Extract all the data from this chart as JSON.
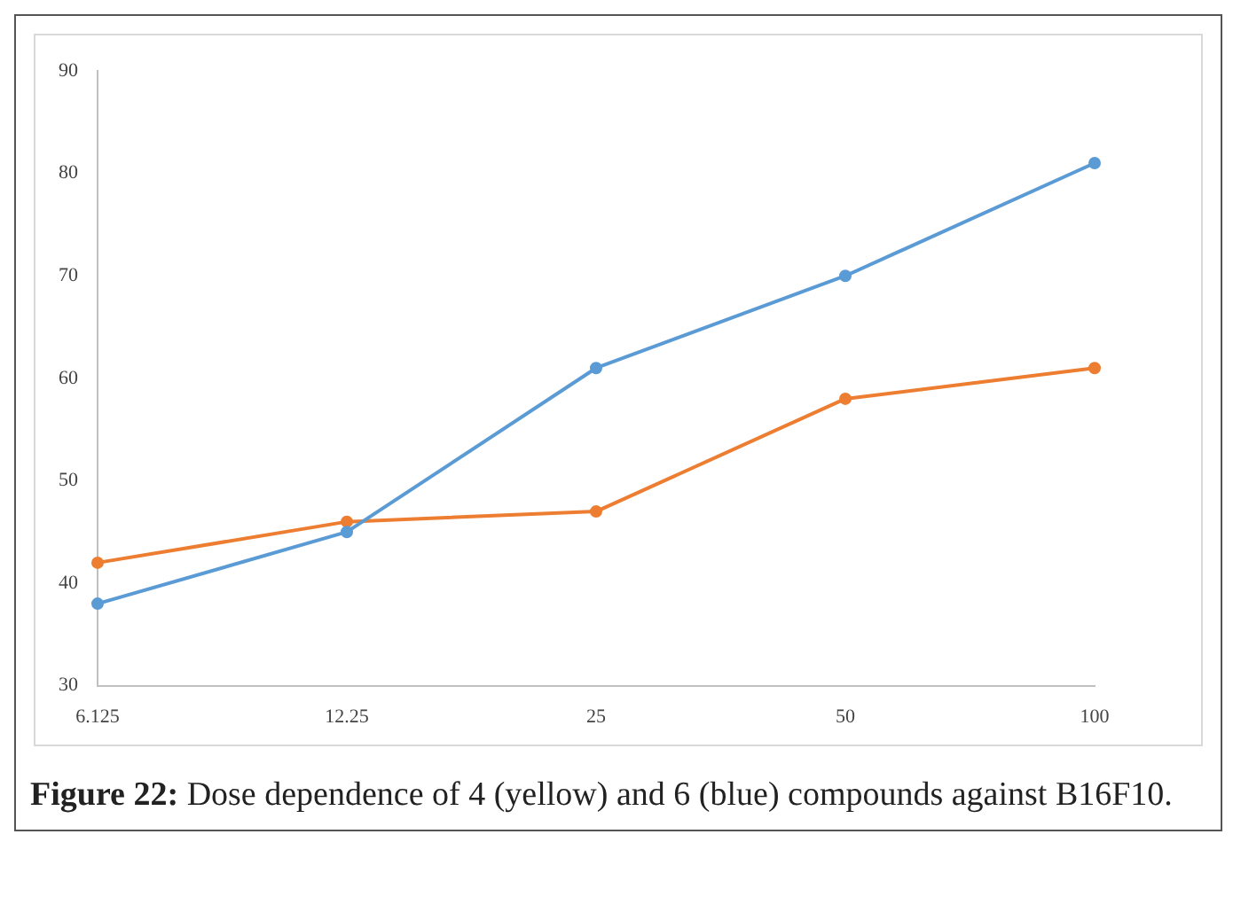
{
  "chart_data": {
    "type": "line",
    "categories": [
      "6.125",
      "12.25",
      "25",
      "50",
      "100"
    ],
    "series": [
      {
        "color": "#5b9bd5",
        "values": [
          38,
          45,
          61,
          70,
          81
        ]
      },
      {
        "color": "#ed7d31",
        "values": [
          42,
          46,
          47,
          58,
          61
        ]
      }
    ],
    "ylim": [
      30,
      90
    ],
    "yticks": [
      30,
      40,
      50,
      60,
      70,
      80,
      90
    ],
    "grid": false,
    "legend": false,
    "marker": "circle",
    "line_style": "solid",
    "annotations": [
      "Figure 22: Dose dependence of 4 (yellow) and 6 (blue) compounds against B16F10."
    ]
  }
}
